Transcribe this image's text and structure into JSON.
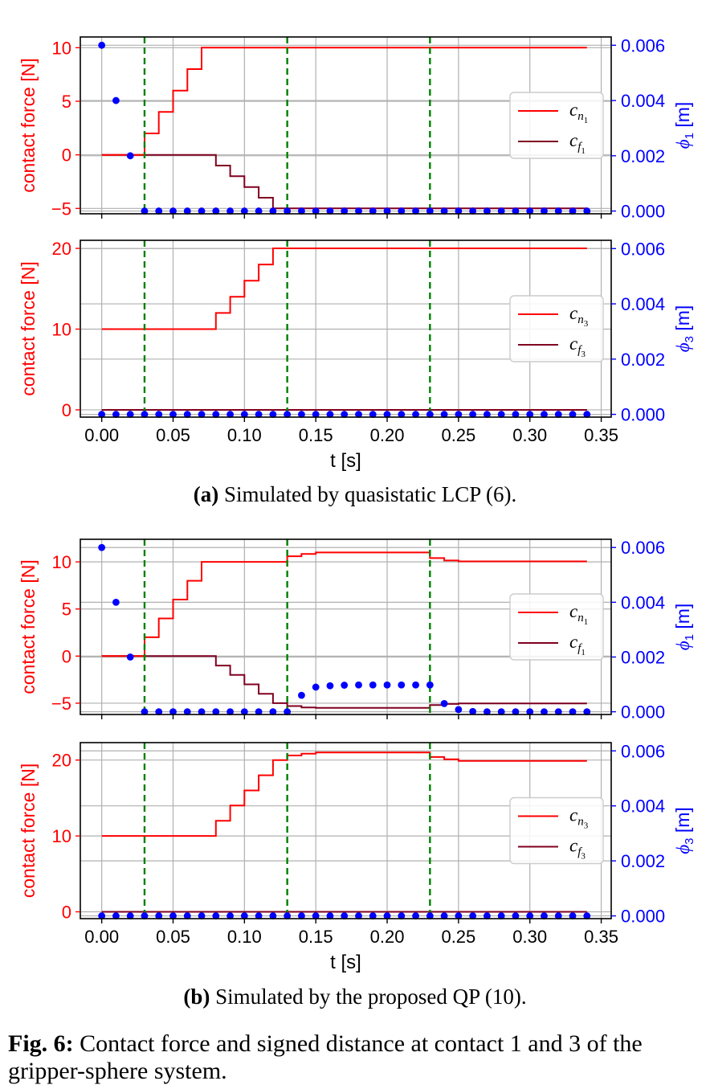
{
  "figure": {
    "caption_label": "Fig. 6:",
    "caption_text": " Contact force and signed distance at contact 1 and 3 of the gripper-sphere system.",
    "subfigures": [
      {
        "label": "(a)",
        "text": " Simulated by quasistatic LCP (6)."
      },
      {
        "label": "(b)",
        "text": " Simulated by the proposed QP (10)."
      }
    ]
  },
  "colors": {
    "cn": "#ff0000",
    "cf": "#800020",
    "phi": "#0000ff",
    "event_lines": "#008000",
    "grid": "#b0b0b0",
    "left_axis_text": "#ff0000",
    "right_axis_text": "#0000ff"
  },
  "chart_data": [
    {
      "id": "a-top",
      "type": "line",
      "ylabel_left": "contact force [N]",
      "ylabel_right": "ϕ",
      "ylabel_right_sub": "1",
      "ylabel_right_unit": " [m]",
      "xlim": [
        -0.015,
        0.357
      ],
      "ylim_left": [
        -5.5,
        11
      ],
      "ylim_right": [
        -0.0001,
        0.0063
      ],
      "xticks": [
        0.0,
        0.05,
        0.1,
        0.15,
        0.2,
        0.25,
        0.3,
        0.35
      ],
      "yticks_left": [
        -5,
        0,
        5,
        10
      ],
      "yticks_right": [
        0.0,
        0.002,
        0.004,
        0.006
      ],
      "ytick_labels_left": [
        "−5",
        "0",
        "5",
        "10"
      ],
      "ytick_labels_right": [
        "0.000",
        "0.002",
        "0.004",
        "0.006"
      ],
      "show_xtick_labels": false,
      "vlines": [
        0.03,
        0.13,
        0.23
      ],
      "legend": [
        {
          "symbol": "c",
          "sub": "n",
          "subsub": "1",
          "series": "cn"
        },
        {
          "symbol": "c",
          "sub": "f",
          "subsub": "1",
          "series": "cf"
        }
      ],
      "series": [
        {
          "name": "cn",
          "steps": [
            [
              0.0,
              0.03,
              0
            ],
            [
              0.03,
              0.04,
              2
            ],
            [
              0.04,
              0.05,
              4
            ],
            [
              0.05,
              0.06,
              6
            ],
            [
              0.06,
              0.07,
              8
            ],
            [
              0.07,
              0.34,
              10
            ]
          ]
        },
        {
          "name": "cf",
          "steps": [
            [
              0.0,
              0.08,
              0
            ],
            [
              0.08,
              0.09,
              -1
            ],
            [
              0.09,
              0.1,
              -2
            ],
            [
              0.1,
              0.11,
              -3
            ],
            [
              0.11,
              0.12,
              -4
            ],
            [
              0.12,
              0.34,
              -5
            ]
          ]
        },
        {
          "name": "phi",
          "values": [
            0.006,
            0.004,
            0.002,
            0,
            0,
            0,
            0,
            0,
            0,
            0,
            0,
            0,
            0,
            0,
            0,
            0,
            0,
            0,
            0,
            0,
            0,
            0,
            0,
            0,
            0,
            0,
            0,
            0,
            0,
            0,
            0,
            0,
            0,
            0,
            0
          ]
        }
      ]
    },
    {
      "id": "a-bottom",
      "type": "line",
      "ylabel_left": "contact force [N]",
      "ylabel_right": "ϕ",
      "ylabel_right_sub": "3",
      "ylabel_right_unit": " [m]",
      "xlim": [
        -0.015,
        0.357
      ],
      "ylim_left": [
        -0.9,
        21
      ],
      "ylim_right": [
        -0.0001,
        0.0063
      ],
      "xticks": [
        0.0,
        0.05,
        0.1,
        0.15,
        0.2,
        0.25,
        0.3,
        0.35
      ],
      "xtick_labels": [
        "0.00",
        "0.05",
        "0.10",
        "0.15",
        "0.20",
        "0.25",
        "0.30",
        "0.35"
      ],
      "yticks_left": [
        0,
        10,
        20
      ],
      "yticks_right": [
        0.0,
        0.002,
        0.004,
        0.006
      ],
      "ytick_labels_left": [
        "0",
        "10",
        "20"
      ],
      "ytick_labels_right": [
        "0.000",
        "0.002",
        "0.004",
        "0.006"
      ],
      "show_xtick_labels": true,
      "xlabel": "t [s]",
      "vlines": [
        0.03,
        0.13,
        0.23
      ],
      "legend": [
        {
          "symbol": "c",
          "sub": "n",
          "subsub": "3",
          "series": "cn"
        },
        {
          "symbol": "c",
          "sub": "f",
          "subsub": "3",
          "series": "cf"
        }
      ],
      "series": [
        {
          "name": "cn",
          "steps": [
            [
              0.0,
              0.08,
              10
            ],
            [
              0.08,
              0.09,
              12
            ],
            [
              0.09,
              0.1,
              14
            ],
            [
              0.1,
              0.11,
              16
            ],
            [
              0.11,
              0.12,
              18
            ],
            [
              0.12,
              0.34,
              20
            ]
          ]
        },
        {
          "name": "cf",
          "steps": [
            [
              0.0,
              0.34,
              0
            ]
          ]
        },
        {
          "name": "phi",
          "values": [
            0,
            0,
            0,
            0,
            0,
            0,
            0,
            0,
            0,
            0,
            0,
            0,
            0,
            0,
            0,
            0,
            0,
            0,
            0,
            0,
            0,
            0,
            0,
            0,
            0,
            0,
            0,
            0,
            0,
            0,
            0,
            0,
            0,
            0,
            0
          ]
        }
      ]
    },
    {
      "id": "b-top",
      "type": "line",
      "ylabel_left": "contact force [N]",
      "ylabel_right": "ϕ",
      "ylabel_right_sub": "1",
      "ylabel_right_unit": " [m]",
      "xlim": [
        -0.015,
        0.357
      ],
      "ylim_left": [
        -6.2,
        12.4
      ],
      "ylim_right": [
        -0.0001,
        0.0063
      ],
      "xticks": [
        0.0,
        0.05,
        0.1,
        0.15,
        0.2,
        0.25,
        0.3,
        0.35
      ],
      "yticks_left": [
        -5,
        0,
        5,
        10
      ],
      "yticks_right": [
        0.0,
        0.002,
        0.004,
        0.006
      ],
      "ytick_labels_left": [
        "−5",
        "0",
        "5",
        "10"
      ],
      "ytick_labels_right": [
        "0.000",
        "0.002",
        "0.004",
        "0.006"
      ],
      "show_xtick_labels": false,
      "vlines": [
        0.03,
        0.13,
        0.23
      ],
      "legend": [
        {
          "symbol": "c",
          "sub": "n",
          "subsub": "1",
          "series": "cn"
        },
        {
          "symbol": "c",
          "sub": "f",
          "subsub": "1",
          "series": "cf"
        }
      ],
      "series": [
        {
          "name": "cn",
          "steps": [
            [
              0.0,
              0.03,
              0
            ],
            [
              0.03,
              0.04,
              2
            ],
            [
              0.04,
              0.05,
              4
            ],
            [
              0.05,
              0.06,
              6
            ],
            [
              0.06,
              0.07,
              8
            ],
            [
              0.07,
              0.13,
              10
            ],
            [
              0.13,
              0.14,
              10.6
            ],
            [
              0.14,
              0.15,
              10.85
            ],
            [
              0.15,
              0.23,
              11
            ],
            [
              0.23,
              0.24,
              10.4
            ],
            [
              0.24,
              0.25,
              10.15
            ],
            [
              0.25,
              0.34,
              10.05
            ]
          ]
        },
        {
          "name": "cf",
          "steps": [
            [
              0.0,
              0.08,
              0
            ],
            [
              0.08,
              0.09,
              -1
            ],
            [
              0.09,
              0.1,
              -2
            ],
            [
              0.1,
              0.11,
              -3
            ],
            [
              0.11,
              0.12,
              -4
            ],
            [
              0.12,
              0.13,
              -5
            ],
            [
              0.13,
              0.14,
              -5.3
            ],
            [
              0.14,
              0.15,
              -5.45
            ],
            [
              0.15,
              0.23,
              -5.5
            ],
            [
              0.23,
              0.24,
              -5.2
            ],
            [
              0.24,
              0.25,
              -5.08
            ],
            [
              0.25,
              0.34,
              -5.02
            ]
          ]
        },
        {
          "name": "phi",
          "values": [
            0.006,
            0.004,
            0.002,
            0,
            0,
            0,
            0,
            0,
            0,
            0,
            0,
            0,
            0,
            0,
            0.0006,
            0.0009,
            0.00095,
            0.00097,
            0.00098,
            0.00098,
            0.00098,
            0.00098,
            0.00098,
            0.00098,
            0.0003,
            8e-05,
            1e-05,
            0,
            0,
            0,
            0,
            0,
            0,
            0,
            0
          ]
        }
      ]
    },
    {
      "id": "b-bottom",
      "type": "line",
      "ylabel_left": "contact force [N]",
      "ylabel_right": "ϕ",
      "ylabel_right_sub": "3",
      "ylabel_right_unit": " [m]",
      "xlim": [
        -0.015,
        0.357
      ],
      "ylim_left": [
        -0.9,
        22.3
      ],
      "ylim_right": [
        -0.0001,
        0.0063
      ],
      "xticks": [
        0.0,
        0.05,
        0.1,
        0.15,
        0.2,
        0.25,
        0.3,
        0.35
      ],
      "xtick_labels": [
        "0.00",
        "0.05",
        "0.10",
        "0.15",
        "0.20",
        "0.25",
        "0.30",
        "0.35"
      ],
      "yticks_left": [
        0,
        10,
        20
      ],
      "yticks_right": [
        0.0,
        0.002,
        0.004,
        0.006
      ],
      "ytick_labels_left": [
        "0",
        "10",
        "20"
      ],
      "ytick_labels_right": [
        "0.000",
        "0.002",
        "0.004",
        "0.006"
      ],
      "show_xtick_labels": true,
      "xlabel": "t [s]",
      "vlines": [
        0.03,
        0.13,
        0.23
      ],
      "legend": [
        {
          "symbol": "c",
          "sub": "n",
          "subsub": "3",
          "series": "cn"
        },
        {
          "symbol": "c",
          "sub": "f",
          "subsub": "3",
          "series": "cf"
        }
      ],
      "series": [
        {
          "name": "cn",
          "steps": [
            [
              0.0,
              0.08,
              10
            ],
            [
              0.08,
              0.09,
              12
            ],
            [
              0.09,
              0.1,
              14
            ],
            [
              0.1,
              0.11,
              16
            ],
            [
              0.11,
              0.12,
              18
            ],
            [
              0.12,
              0.13,
              20
            ],
            [
              0.13,
              0.14,
              20.6
            ],
            [
              0.14,
              0.15,
              20.85
            ],
            [
              0.15,
              0.23,
              21
            ],
            [
              0.23,
              0.24,
              20.4
            ],
            [
              0.24,
              0.25,
              20.1
            ],
            [
              0.25,
              0.34,
              19.9
            ]
          ]
        },
        {
          "name": "cf",
          "steps": [
            [
              0.0,
              0.34,
              0
            ]
          ]
        },
        {
          "name": "phi",
          "values": [
            0,
            0,
            0,
            0,
            0,
            0,
            0,
            0,
            0,
            0,
            0,
            0,
            0,
            0,
            0,
            0,
            0,
            0,
            0,
            0,
            0,
            0,
            0,
            0,
            0,
            0,
            0,
            0,
            0,
            0,
            0,
            0,
            0,
            0,
            0
          ]
        }
      ]
    }
  ]
}
